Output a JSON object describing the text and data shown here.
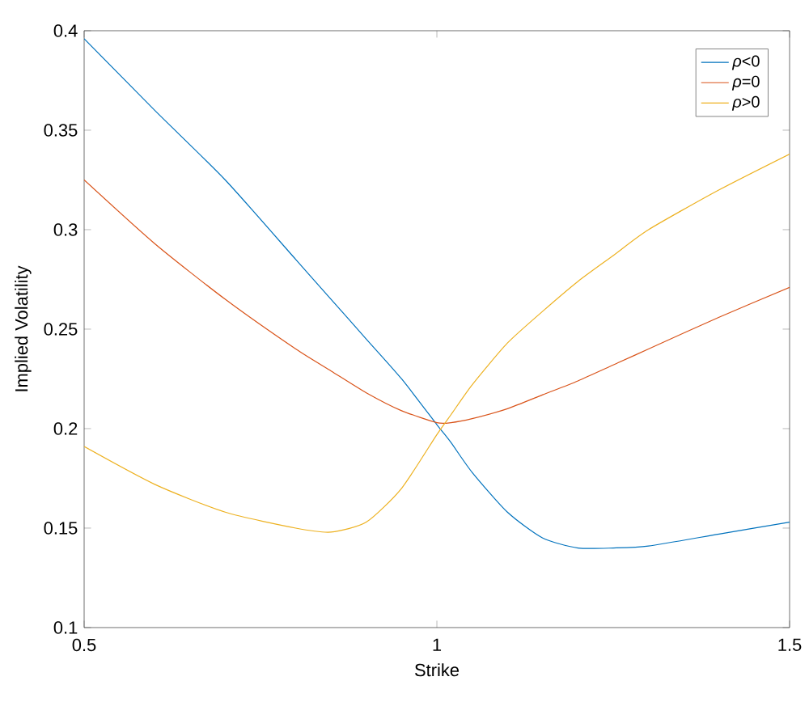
{
  "chart_data": {
    "type": "line",
    "xlabel": "Strike",
    "ylabel": "Implied Volatility",
    "xlim": [
      0.5,
      1.5
    ],
    "ylim": [
      0.1,
      0.4
    ],
    "xticks": [
      0.5,
      1,
      1.5
    ],
    "yticks": [
      0.1,
      0.15,
      0.2,
      0.25,
      0.3,
      0.35,
      0.4
    ],
    "legend": "top right",
    "grid": false,
    "marker": "none",
    "line_style": "solid",
    "x": [
      0.5,
      0.6,
      0.7,
      0.8,
      0.85,
      0.9,
      0.95,
      1.0,
      1.02,
      1.05,
      1.1,
      1.15,
      1.2,
      1.25,
      1.3,
      1.4,
      1.5
    ],
    "series": [
      {
        "name": "*ρ*<0",
        "color": "#0072bd",
        "values": [
          0.396,
          0.36,
          0.325,
          0.285,
          0.265,
          0.245,
          0.225,
          0.202,
          0.193,
          0.178,
          0.158,
          0.145,
          0.14,
          0.14,
          0.141,
          0.147,
          0.153
        ]
      },
      {
        "name": "*ρ*=0",
        "color": "#d95319",
        "values": [
          0.325,
          0.293,
          0.265,
          0.24,
          0.229,
          0.218,
          0.209,
          0.203,
          0.203,
          0.205,
          0.21,
          0.217,
          0.224,
          0.232,
          0.24,
          0.256,
          0.271
        ]
      },
      {
        "name": "*ρ*>0",
        "color": "#edb120",
        "values": [
          0.191,
          0.172,
          0.158,
          0.15,
          0.148,
          0.153,
          0.17,
          0.197,
          0.207,
          0.222,
          0.243,
          0.259,
          0.274,
          0.287,
          0.3,
          0.32,
          0.338
        ]
      }
    ]
  }
}
